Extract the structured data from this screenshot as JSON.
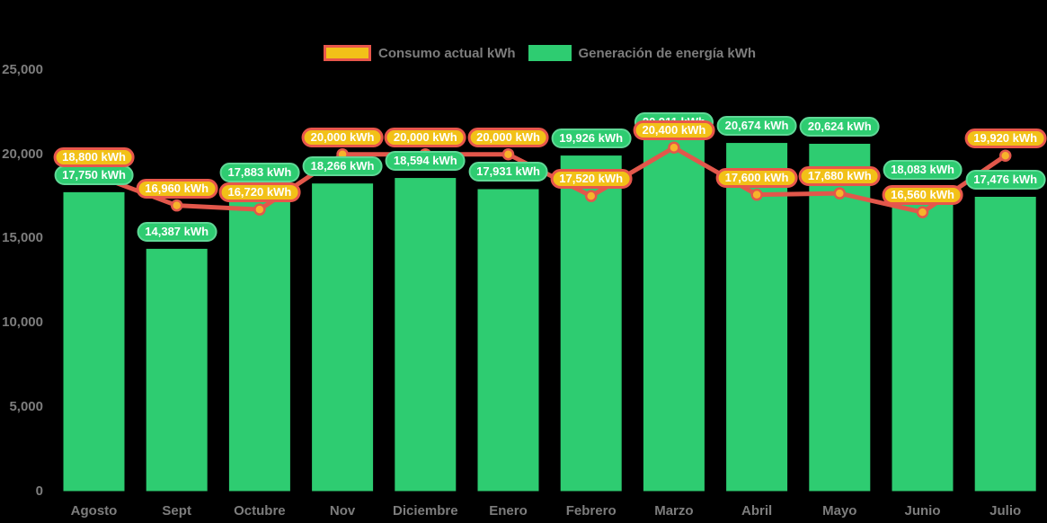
{
  "legend": {
    "items": [
      {
        "label": "Consumo actual kWh",
        "series": "consumo"
      },
      {
        "label": "Generación de energía kWh",
        "series": "generacion"
      }
    ]
  },
  "chart_data": {
    "type": "bar",
    "subtype": "bars-with-line-overlay",
    "title": "",
    "xlabel": "",
    "ylabel": "",
    "unit": "kWh",
    "categories": [
      "Agosto",
      "Sept",
      "Octubre",
      "Nov",
      "Diciembre",
      "Enero",
      "Febrero",
      "Marzo",
      "Abril",
      "Mayo",
      "Junio",
      "Julio"
    ],
    "series": [
      {
        "name": "Generación de energía kWh",
        "type": "bar",
        "color": "#2ecc71",
        "badge_fill": "#2ecc71",
        "badge_border": "#5fd896",
        "values": [
          17750,
          14387,
          17883,
          18266,
          18594,
          17931,
          19926,
          20911,
          20674,
          20624,
          18083,
          17476
        ]
      },
      {
        "name": "Consumo actual kWh",
        "type": "line",
        "color": "#e2574b",
        "marker_color": "#f7b32b",
        "badge_fill": "#f2c118",
        "badge_border": "#e8564b",
        "values": [
          18800,
          16960,
          16720,
          20000,
          20000,
          20000,
          17520,
          20400,
          17600,
          17680,
          16560,
          19920
        ]
      }
    ],
    "yticks": [
      0,
      5000,
      10000,
      15000,
      20000,
      25000
    ],
    "ytick_labels": [
      "0",
      "5,000",
      "10,000",
      "15,000",
      "20,000",
      "25,000"
    ],
    "ylim": [
      0,
      25000
    ],
    "grid": false,
    "legend_position": "top",
    "background": "#000000",
    "text_color": "#7d7d7d"
  }
}
